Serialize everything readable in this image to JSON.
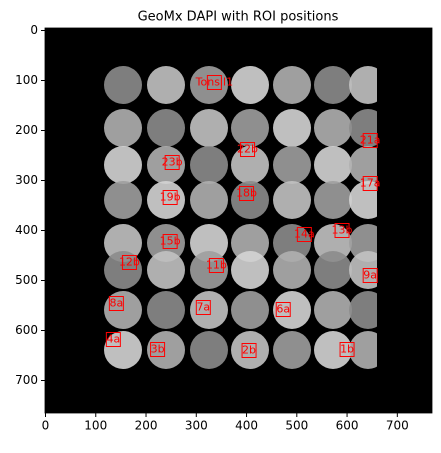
{
  "chart_data": {
    "type": "image",
    "title": "GeoMx DAPI with ROI positions",
    "xlim": [
      -1,
      769
    ],
    "ylim": [
      765,
      -5
    ],
    "xticks": [
      0,
      100,
      200,
      300,
      400,
      500,
      600,
      700
    ],
    "yticks": [
      0,
      100,
      200,
      300,
      400,
      500,
      600,
      700
    ],
    "color": "#ff0000",
    "rois": [
      {
        "label": "Tonsil1",
        "x": 336,
        "y": 104
      },
      {
        "label": "21a",
        "x": 646,
        "y": 220
      },
      {
        "label": "22b",
        "x": 402,
        "y": 238
      },
      {
        "label": "23b",
        "x": 252,
        "y": 264
      },
      {
        "label": "17a",
        "x": 646,
        "y": 306
      },
      {
        "label": "19b",
        "x": 248,
        "y": 334
      },
      {
        "label": "18b",
        "x": 400,
        "y": 326
      },
      {
        "label": "14a",
        "x": 515,
        "y": 408
      },
      {
        "label": "13b",
        "x": 590,
        "y": 400
      },
      {
        "label": "15b",
        "x": 248,
        "y": 422
      },
      {
        "label": "12b",
        "x": 167,
        "y": 464
      },
      {
        "label": "11b",
        "x": 340,
        "y": 470
      },
      {
        "label": "9a",
        "x": 646,
        "y": 490
      },
      {
        "label": "8a",
        "x": 141,
        "y": 546
      },
      {
        "label": "7a",
        "x": 314,
        "y": 554
      },
      {
        "label": "6a",
        "x": 473,
        "y": 558
      },
      {
        "label": "4a",
        "x": 135,
        "y": 618
      },
      {
        "label": "3b",
        "x": 223,
        "y": 638
      },
      {
        "label": "2b",
        "x": 405,
        "y": 640
      },
      {
        "label": "1b",
        "x": 600,
        "y": 638
      }
    ]
  }
}
